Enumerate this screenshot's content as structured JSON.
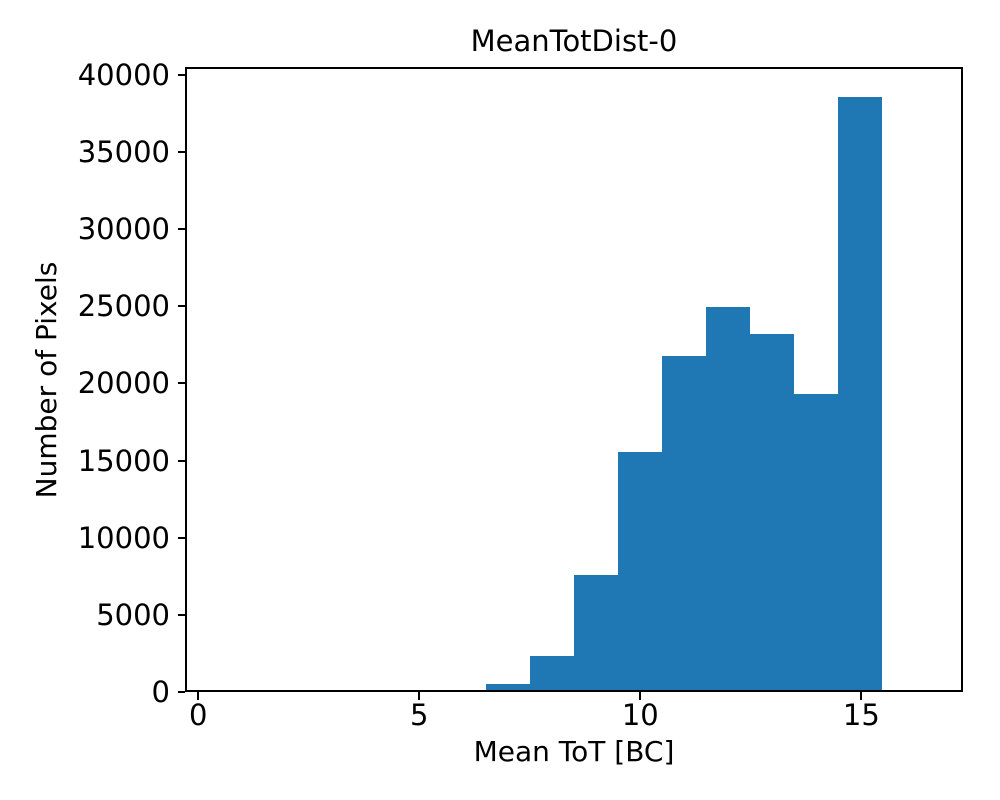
{
  "chart_data": {
    "type": "bar",
    "subtype": "histogram",
    "title": "MeanTotDist-0",
    "xlabel": "Mean ToT [BC]",
    "ylabel": "Number of Pixels",
    "bin_edges": [
      6.5,
      7.5,
      8.5,
      9.5,
      10.5,
      11.5,
      12.5,
      13.5,
      14.5,
      15.5
    ],
    "counts": [
      400,
      2200,
      7500,
      15500,
      21800,
      24950,
      23200,
      19300,
      38700
    ],
    "xticks": [
      0,
      5,
      10,
      15
    ],
    "yticks": [
      0,
      5000,
      10000,
      15000,
      20000,
      25000,
      30000,
      35000,
      40000
    ],
    "xlim": [
      -0.3,
      17.3
    ],
    "ylim": [
      0,
      40500
    ],
    "bar_color": "#1f77b4",
    "grid": false,
    "legend": null
  }
}
